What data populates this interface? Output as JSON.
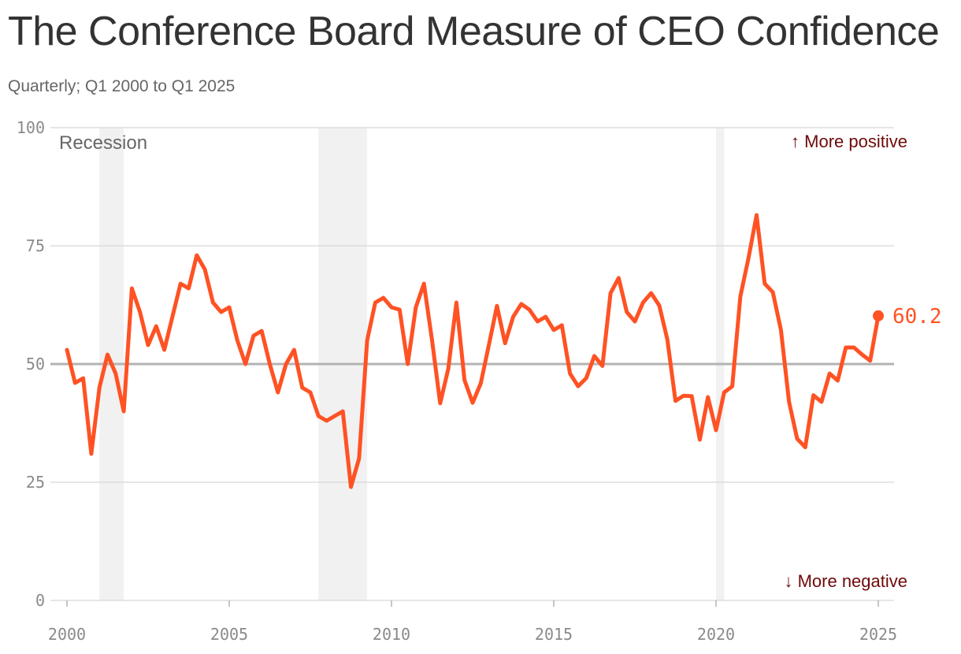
{
  "title": "The Conference Board Measure of CEO Confidence",
  "subtitle": "Quarterly; Q1 2000 to Q1 2025",
  "colors": {
    "line": "#ff5224",
    "recession": "#f1f1f1",
    "grid": "#dddddd",
    "midline": "#b3b3b3",
    "annotation": "#6e0a0a"
  },
  "chart_data": {
    "type": "line",
    "title": "The Conference Board Measure of CEO Confidence",
    "subtitle": "Quarterly; Q1 2000 to Q1 2025",
    "xlabel": "",
    "ylabel": "",
    "xlim": [
      2000,
      2025
    ],
    "ylim": [
      0,
      100
    ],
    "x_ticks": [
      2000,
      2005,
      2010,
      2015,
      2020,
      2025
    ],
    "x_tick_labels": [
      "2000",
      "2005",
      "2010",
      "2015",
      "2020",
      "2025"
    ],
    "y_ticks": [
      0,
      25,
      50,
      75,
      100
    ],
    "y_tick_labels": [
      "0",
      "25",
      "50",
      "75",
      "100"
    ],
    "grid": true,
    "reference_line": 50,
    "recession_label": "Recession",
    "recessions": [
      [
        2001.0,
        2001.75
      ],
      [
        2007.75,
        2009.25
      ],
      [
        2020.0,
        2020.25
      ]
    ],
    "annotation_top": "↑ More positive",
    "annotation_bottom": "↓ More negative",
    "last_value_label": "60.2",
    "series": [
      {
        "x": [
          2000.0,
          2000.25,
          2000.5,
          2000.75,
          2001.0,
          2001.25,
          2001.5,
          2001.75,
          2002.0,
          2002.25,
          2002.5,
          2002.75,
          2003.0,
          2003.25,
          2003.5,
          2003.75,
          2004.0,
          2004.25,
          2004.5,
          2004.75,
          2005.0,
          2005.25,
          2005.5,
          2005.75,
          2006.0,
          2006.25,
          2006.5,
          2006.75,
          2007.0,
          2007.25,
          2007.5,
          2007.75,
          2008.0,
          2008.25,
          2008.5,
          2008.75,
          2009.0,
          2009.25,
          2009.5,
          2009.75,
          2010.0,
          2010.25,
          2010.5,
          2010.75,
          2011.0,
          2011.25,
          2011.5,
          2011.75,
          2012.0,
          2012.25,
          2012.5,
          2012.75,
          2013.0,
          2013.25,
          2013.5,
          2013.75,
          2014.0,
          2014.25,
          2014.5,
          2014.75,
          2015.0,
          2015.25,
          2015.5,
          2015.75,
          2016.0,
          2016.25,
          2016.5,
          2016.75,
          2017.0,
          2017.25,
          2017.5,
          2017.75,
          2018.0,
          2018.25,
          2018.5,
          2018.75,
          2019.0,
          2019.25,
          2019.5,
          2019.75,
          2020.0,
          2020.25,
          2020.5,
          2020.75,
          2021.0,
          2021.25,
          2021.5,
          2021.75,
          2022.0,
          2022.25,
          2022.5,
          2022.75,
          2023.0,
          2023.25,
          2023.5,
          2023.75,
          2024.0,
          2024.25,
          2024.5,
          2024.75,
          2025.0
        ],
        "y": [
          53,
          46,
          47,
          31,
          45,
          52,
          48,
          40,
          66,
          61,
          54,
          58,
          53,
          60,
          67,
          66,
          73,
          70,
          63,
          61,
          62,
          55,
          50,
          56,
          57,
          50,
          44,
          50,
          53,
          45,
          44,
          39,
          38,
          39,
          40,
          24,
          30,
          55,
          63,
          64,
          62,
          61.5,
          50,
          62,
          67,
          55,
          41.7,
          49,
          63,
          46.6,
          41.8,
          45.9,
          54,
          62.3,
          54.4,
          60,
          62.7,
          61.5,
          59,
          60,
          57.2,
          58.2,
          48,
          45.3,
          47,
          51.7,
          49.6,
          65,
          68.2,
          61,
          59,
          63,
          65,
          62.4,
          55.2,
          42.2,
          43.3,
          43.2,
          34,
          43,
          36,
          44,
          45.3,
          64.3,
          72.4,
          81.5,
          67,
          65.2,
          57.2,
          42,
          34.2,
          32.4,
          43.4,
          42,
          48,
          46.5,
          53.5,
          53.5,
          52,
          50.7,
          60.2
        ]
      }
    ]
  }
}
